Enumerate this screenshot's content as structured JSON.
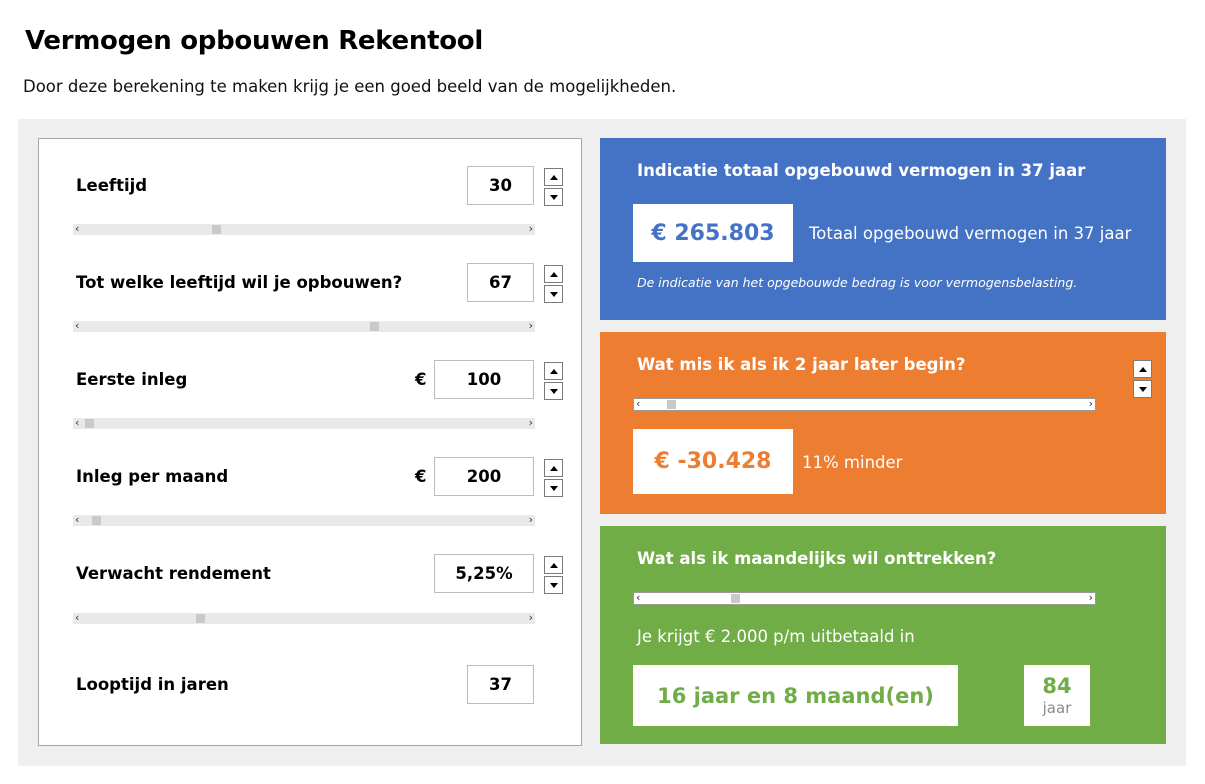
{
  "header": {
    "title": "Vermogen opbouwen Rekentool",
    "subtitle": "Door deze berekening te maken krijg je een goed beeld van de mogelijkheden."
  },
  "inputs": {
    "currency_symbol": "€",
    "rows": [
      {
        "label": "Leeftijd",
        "value": "30"
      },
      {
        "label": "Tot welke leeftijd wil je opbouwen?",
        "value": "67"
      },
      {
        "label": "Eerste inleg",
        "value": "100"
      },
      {
        "label": "Inleg per maand",
        "value": "200"
      },
      {
        "label": "Verwacht rendement",
        "value": "5,25%"
      },
      {
        "label": "Looptijd in jaren",
        "value": "37"
      }
    ]
  },
  "total": {
    "title": "Indicatie totaal opgebouwd vermogen in 37 jaar",
    "amount": "€ 265.803",
    "amount_label": "Totaal opgebouwd vermogen in 37 jaar",
    "note": "De indicatie van het opgebouwde bedrag is voor vermogensbelasting."
  },
  "later": {
    "title": "Wat mis ik als ik 2 jaar later begin?",
    "amount": "€ -30.428",
    "percent_label": "11% minder"
  },
  "withdraw": {
    "title": "Wat als ik maandelijks wil onttrekken?",
    "payout_text": "Je krijgt € 2.000 p/m uitbetaald in",
    "duration": "16 jaar en 8 maand(en)",
    "age_value": "84",
    "age_unit": "jaar"
  },
  "colors": {
    "blue": "#4472c4",
    "orange": "#ed7d31",
    "green": "#70ad47",
    "panel_bg": "#efefef"
  },
  "icons": {
    "spin_up": "triangle-up",
    "spin_down": "triangle-down",
    "scroll_left": "‹",
    "scroll_right": "›"
  }
}
